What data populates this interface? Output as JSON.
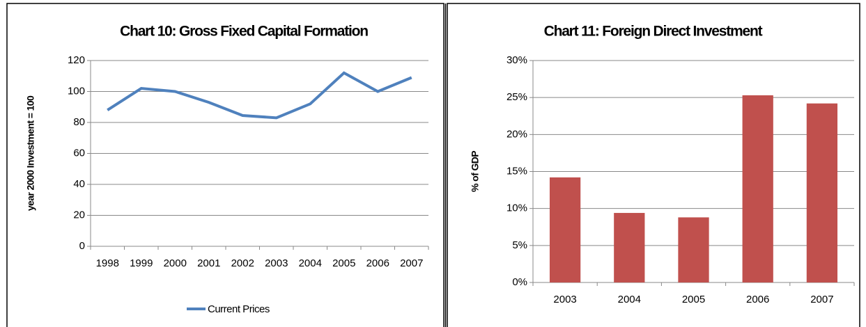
{
  "chart_data": [
    {
      "type": "line",
      "title": "Chart 10: Gross Fixed Capital Formation",
      "y_label": "year 2000 Investment = 100",
      "categories": [
        "1998",
        "1999",
        "2000",
        "2001",
        "2002",
        "2003",
        "2004",
        "2005",
        "2006",
        "2007"
      ],
      "series": [
        {
          "name": "Current Prices",
          "color": "#4f81bd",
          "values": [
            88,
            102,
            100,
            93,
            84.5,
            83,
            92,
            112,
            100,
            109
          ]
        }
      ],
      "ylim": [
        0,
        120
      ],
      "yticks": [
        0,
        20,
        40,
        60,
        80,
        100,
        120
      ],
      "grid": true,
      "legend": "bottom"
    },
    {
      "type": "bar",
      "title": "Chart 11: Foreign Direct Investment",
      "y_label": "% of GDP",
      "categories": [
        "2003",
        "2004",
        "2005",
        "2006",
        "2007"
      ],
      "values": [
        14.2,
        9.4,
        8.8,
        25.3,
        24.2
      ],
      "color": "#c0504d",
      "ylim": [
        0,
        30
      ],
      "yticks": [
        {
          "value": 0,
          "label": "0%"
        },
        {
          "value": 5,
          "label": "5%"
        },
        {
          "value": 10,
          "label": "10%"
        },
        {
          "value": 15,
          "label": "15%"
        },
        {
          "value": 20,
          "label": "20%"
        },
        {
          "value": 25,
          "label": "25%"
        },
        {
          "value": 30,
          "label": "30%"
        }
      ],
      "grid": true
    }
  ]
}
